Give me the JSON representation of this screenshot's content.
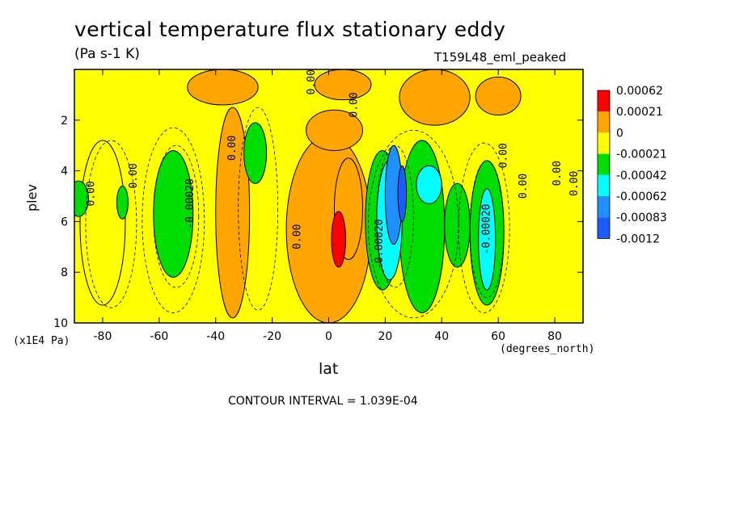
{
  "chart_data": {
    "type": "heatmap",
    "title": "vertical temperature flux stationary eddy",
    "units": "(Pa s-1 K)",
    "run_label": "T159L48_eml_peaked",
    "xlabel": "lat",
    "xlabel_units": "(degrees_north)",
    "ylabel": "plev",
    "ylabel_scale": "(x1E4 Pa)",
    "xlim": [
      -90,
      90
    ],
    "ylim": [
      10,
      0
    ],
    "x_ticks": [
      -80,
      -60,
      -40,
      -20,
      0,
      20,
      40,
      60,
      80
    ],
    "x_tick_labels": [
      "-80",
      "-60",
      "-40",
      "-20",
      "0",
      "20",
      "40",
      "60",
      "80"
    ],
    "y_ticks": [
      2,
      4,
      6,
      8,
      10
    ],
    "y_tick_labels": [
      "2",
      "4",
      "6",
      "8",
      "10"
    ],
    "contour_interval": "CONTOUR INTERVAL = 1.039E-04",
    "colorbar": {
      "colors": [
        "#ff0000",
        "#ffa500",
        "#ffff00",
        "#00dd00",
        "#00ffff",
        "#1e90ff",
        "#1a5cff"
      ],
      "labels": [
        "0.00062",
        "0.00021",
        "0",
        "-0.00021",
        "-0.00042",
        "-0.00062",
        "-0.00083",
        "-0.0012"
      ]
    },
    "background_class": 2,
    "regions": [
      {
        "lat": [
          -88,
          -72
        ],
        "p": [
          2.8,
          9.3
        ],
        "class": 2
      },
      {
        "lat": [
          -50,
          -25
        ],
        "p": [
          0.0,
          1.4
        ],
        "class": 1
      },
      {
        "lat": [
          -5,
          15
        ],
        "p": [
          0.0,
          1.2
        ],
        "class": 1
      },
      {
        "lat": [
          25,
          50
        ],
        "p": [
          0.0,
          2.2
        ],
        "class": 1
      },
      {
        "lat": [
          52,
          68
        ],
        "p": [
          0.3,
          1.8
        ],
        "class": 1
      },
      {
        "lat": [
          -40,
          -28
        ],
        "p": [
          1.5,
          9.8
        ],
        "class": 1
      },
      {
        "lat": [
          -15,
          15
        ],
        "p": [
          2.6,
          10.0
        ],
        "class": 1
      },
      {
        "lat": [
          -8,
          12
        ],
        "p": [
          1.6,
          3.2
        ],
        "class": 1
      },
      {
        "lat": [
          2,
          12
        ],
        "p": [
          3.5,
          7.5
        ],
        "class": 1
      },
      {
        "lat": [
          -62,
          -48
        ],
        "p": [
          3.2,
          8.2
        ],
        "class": 3
      },
      {
        "lat": [
          -92,
          -85
        ],
        "p": [
          4.4,
          5.8
        ],
        "class": 3
      },
      {
        "lat": [
          -75,
          -71
        ],
        "p": [
          4.6,
          5.9
        ],
        "class": 3
      },
      {
        "lat": [
          -30,
          -22
        ],
        "p": [
          2.1,
          4.5
        ],
        "class": 3
      },
      {
        "lat": [
          13,
          25
        ],
        "p": [
          3.2,
          8.7
        ],
        "class": 3
      },
      {
        "lat": [
          25,
          41
        ],
        "p": [
          2.8,
          9.6
        ],
        "class": 3
      },
      {
        "lat": [
          41,
          50
        ],
        "p": [
          4.5,
          7.8
        ],
        "class": 3
      },
      {
        "lat": [
          50,
          62
        ],
        "p": [
          3.6,
          9.3
        ],
        "class": 3
      },
      {
        "lat": [
          17,
          26
        ],
        "p": [
          3.6,
          8.3
        ],
        "class": 4
      },
      {
        "lat": [
          31,
          40
        ],
        "p": [
          3.8,
          5.3
        ],
        "class": 4
      },
      {
        "lat": [
          53,
          59
        ],
        "p": [
          4.7,
          8.7
        ],
        "class": 4
      },
      {
        "lat": [
          20,
          26
        ],
        "p": [
          3.0,
          6.9
        ],
        "class": 5
      },
      {
        "lat": [
          24.5,
          27.5
        ],
        "p": [
          3.8,
          6.0
        ],
        "class": 6
      },
      {
        "lat": [
          1,
          6
        ],
        "p": [
          5.6,
          7.8
        ],
        "class": 0
      }
    ],
    "contour_labels": [
      {
        "text": "0.00",
        "lat": -83,
        "p": 4.9
      },
      {
        "text": "0.00",
        "lat": -68,
        "p": 4.2
      },
      {
        "text": "-0.00020",
        "lat": -48,
        "p": 5.3
      },
      {
        "text": "0.00",
        "lat": -33,
        "p": 3.1
      },
      {
        "text": "0.00",
        "lat": -10,
        "p": 6.6
      },
      {
        "text": "0.00",
        "lat": 10,
        "p": 1.4
      },
      {
        "text": "0.00",
        "lat": -5,
        "p": 0.5
      },
      {
        "text": "0.00",
        "lat": 63,
        "p": 3.4
      },
      {
        "text": "-0.00020",
        "lat": 19,
        "p": 6.9
      },
      {
        "text": "-0.00020",
        "lat": 57,
        "p": 6.3
      },
      {
        "text": "0.00",
        "lat": 70,
        "p": 4.6
      },
      {
        "text": "0.00",
        "lat": 82,
        "p": 4.1
      },
      {
        "text": "0.00",
        "lat": 88,
        "p": 4.5
      }
    ],
    "dashed_contours": [
      {
        "lat": [
          -86,
          -68
        ],
        "p": [
          2.8,
          9.4
        ]
      },
      {
        "lat": [
          -66,
          -44
        ],
        "p": [
          2.3,
          9.6
        ]
      },
      {
        "lat": [
          -62,
          -46
        ],
        "p": [
          3.0,
          8.6
        ]
      },
      {
        "lat": [
          -32,
          -18
        ],
        "p": [
          1.5,
          9.5
        ]
      },
      {
        "lat": [
          14,
          46
        ],
        "p": [
          2.4,
          9.8
        ]
      },
      {
        "lat": [
          17,
          30
        ],
        "p": [
          3.0,
          8.6
        ]
      },
      {
        "lat": [
          46,
          64
        ],
        "p": [
          2.9,
          9.6
        ]
      },
      {
        "lat": [
          50,
          62
        ],
        "p": [
          3.6,
          9.0
        ]
      }
    ]
  }
}
